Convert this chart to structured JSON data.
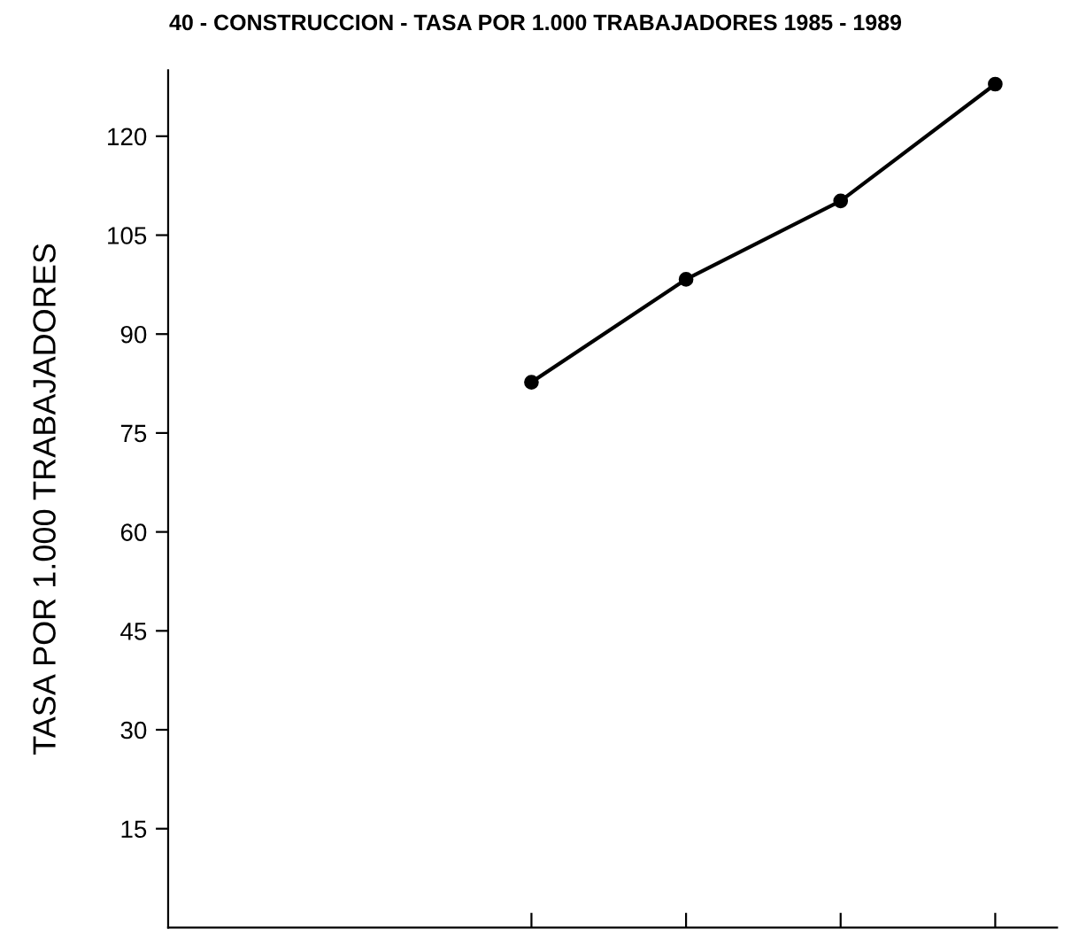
{
  "chart_data": {
    "type": "line",
    "title": "40 - CONSTRUCCION - TASA POR 1.000 TRABAJADORES 1985 - 1989",
    "ylabel": "TASA POR 1.000 TRABAJADORES",
    "categories": [
      null,
      null,
      null,
      null
    ],
    "series": [
      {
        "color": "#000000",
        "values": [
          82.7,
          98.3,
          110.2,
          127.9
        ]
      }
    ],
    "ylim": [
      0,
      130
    ],
    "yticks": [
      15,
      30,
      45,
      60,
      75,
      90,
      105,
      120
    ],
    "grid": false,
    "marker": "circle",
    "line_style": "solid",
    "tick_labels": "y"
  }
}
